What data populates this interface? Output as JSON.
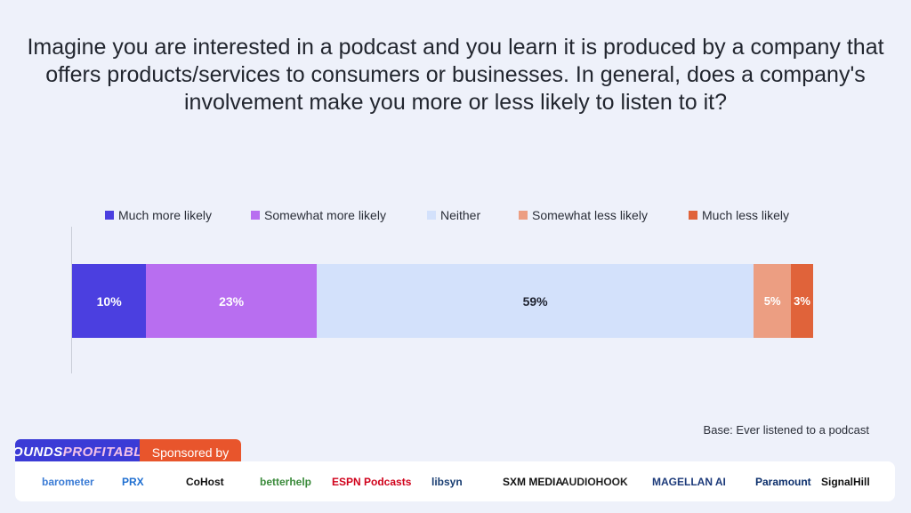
{
  "chart_data": {
    "type": "bar",
    "orientation": "horizontal",
    "stacked": true,
    "title": "Imagine you are interested in a podcast and you learn it is produced by a company that offers products/services to consumers or businesses. In general, does a company's involvement make you more or less likely to listen to it?",
    "xlim": [
      0,
      100
    ],
    "legend_position": "top",
    "series": [
      {
        "name": "Much more likely",
        "values": [
          10
        ],
        "label": "10%",
        "color": "#4b3fe0",
        "label_color": "#ffffff"
      },
      {
        "name": "Somewhat more likely",
        "values": [
          23
        ],
        "label": "23%",
        "color": "#b86ef0",
        "label_color": "#ffffff"
      },
      {
        "name": "Neither",
        "values": [
          59
        ],
        "label": "59%",
        "color": "#d3e1fb",
        "label_color": "#1f2330"
      },
      {
        "name": "Somewhat less likely",
        "values": [
          5
        ],
        "label": "5%",
        "color": "#ec9e82",
        "label_color": "#ffffff"
      },
      {
        "name": "Much less likely",
        "values": [
          3
        ],
        "label": "3%",
        "color": "#e0633a",
        "label_color": "#ffffff"
      }
    ]
  },
  "base_note": "Base: Ever listened to a podcast",
  "brand": {
    "logo_part1": "SOUNDS",
    "logo_part2": "PROFITABLE",
    "sponsored_label": "Sponsored by"
  },
  "sponsors": [
    {
      "name": "barometer",
      "color": "#3a7bd5"
    },
    {
      "name": "PRX",
      "color": "#1f6fd1"
    },
    {
      "name": "CoHost",
      "color": "#111111"
    },
    {
      "name": "betterhelp",
      "color": "#3a8a3a"
    },
    {
      "name": "ESPN Podcasts",
      "color": "#d0021b"
    },
    {
      "name": "libsyn",
      "color": "#1a3e72"
    },
    {
      "name": "SXM MEDIA",
      "color": "#111111"
    },
    {
      "name": "AUDIOHOOK",
      "color": "#222222"
    },
    {
      "name": "MAGELLAN AI",
      "color": "#1c3a7a"
    },
    {
      "name": "Paramount",
      "color": "#0b2e6b"
    },
    {
      "name": "SignalHill",
      "color": "#111111"
    }
  ]
}
